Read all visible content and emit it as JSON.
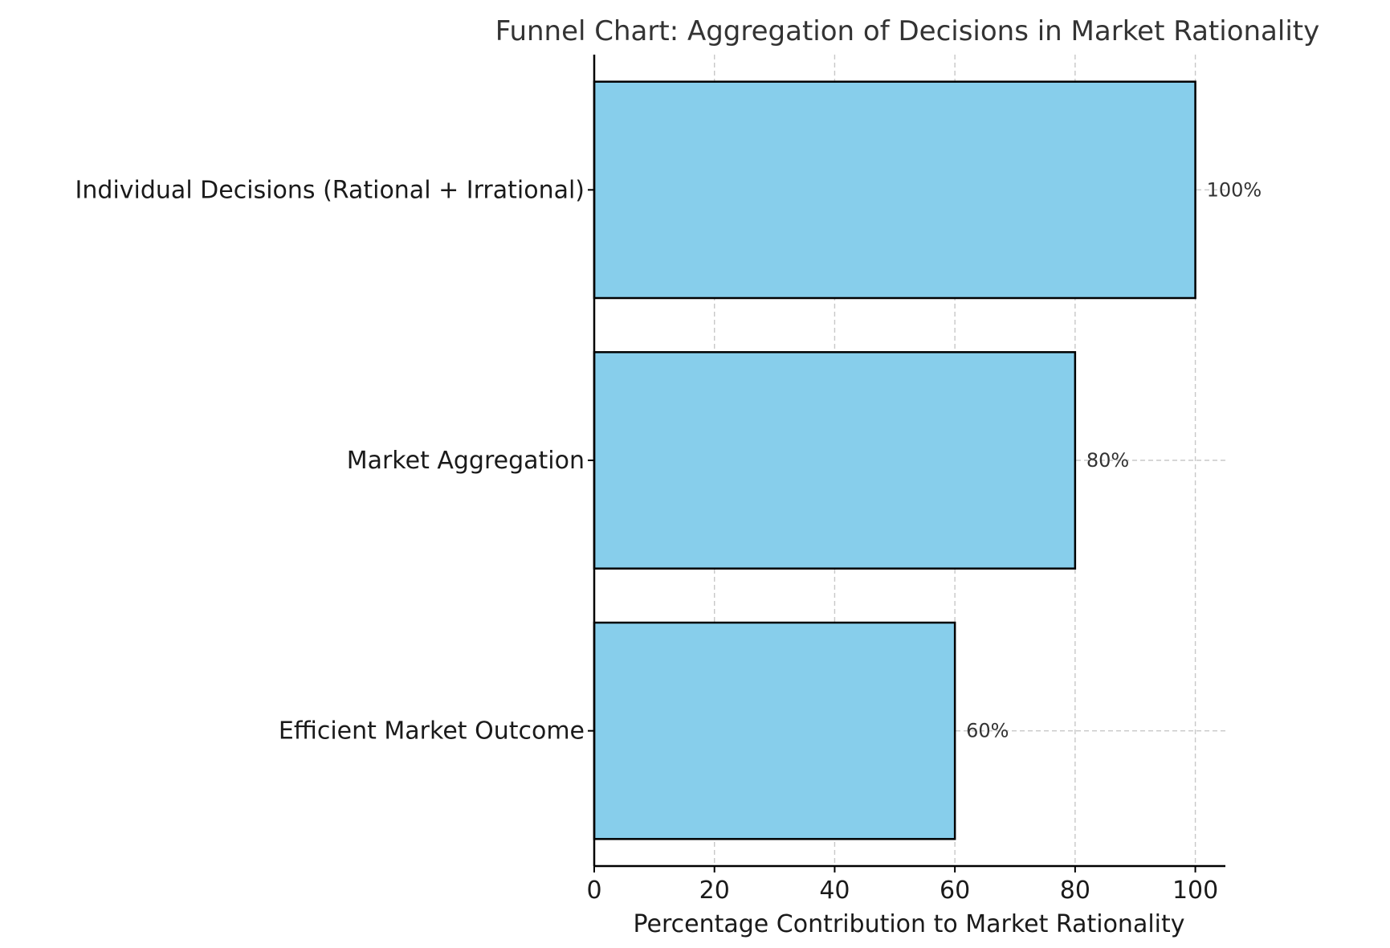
{
  "chart_data": {
    "type": "bar",
    "orientation": "horizontal",
    "title": "Funnel Chart: Aggregation of Decisions in Market Rationality",
    "xlabel": "Percentage Contribution to Market Rationality",
    "ylabel": "",
    "categories": [
      "Individual Decisions (Rational + Irrational)",
      "Market Aggregation",
      "Efficient Market Outcome"
    ],
    "values": [
      100,
      80,
      60
    ],
    "data_labels": [
      "100%",
      "80%",
      "60%"
    ],
    "xlim": [
      0,
      105
    ],
    "xticks": [
      0,
      20,
      40,
      60,
      80,
      100
    ],
    "xtick_labels": [
      "0",
      "20",
      "40",
      "60",
      "80",
      "100"
    ],
    "grid": true,
    "grid_style": "dashed",
    "bar_color": "#87ceeb",
    "bar_edge_color": "#000000"
  }
}
